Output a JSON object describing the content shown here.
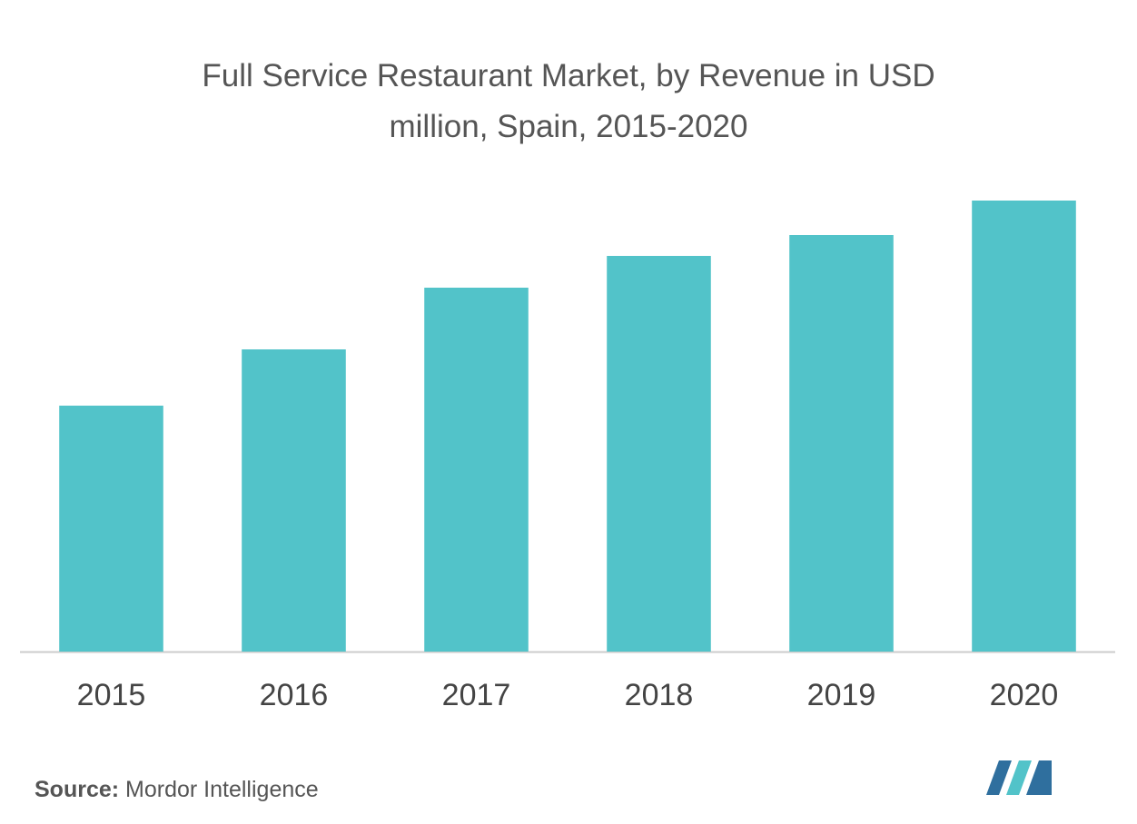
{
  "chart_data": {
    "type": "bar",
    "title": "Full Service Restaurant Market, by Revenue in USD million,  Spain, 2015-2020",
    "categories": [
      "2015",
      "2016",
      "2017",
      "2018",
      "2019",
      "2020"
    ],
    "values": [
      271,
      333,
      401,
      436,
      459,
      497
    ],
    "color": "#52c3c9",
    "source_label": "Source:",
    "source": "Mordor Intelligence"
  }
}
